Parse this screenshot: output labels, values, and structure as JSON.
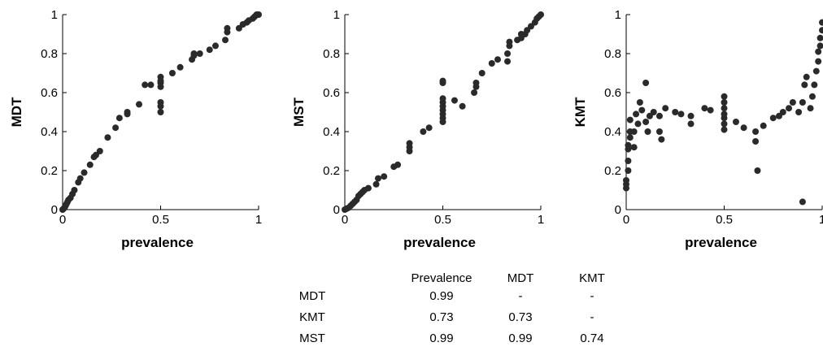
{
  "chart_data": [
    {
      "type": "scatter",
      "xlabel": "prevalence",
      "ylabel": "MDT",
      "xlim": [
        0,
        1
      ],
      "ylim": [
        0,
        1
      ],
      "xticks": [
        "0",
        "0.5",
        "1"
      ],
      "yticks": [
        "0",
        "0.2",
        "0.4",
        "0.6",
        "0.8",
        "1"
      ],
      "grid": false,
      "points": [
        [
          0.0,
          0.0
        ],
        [
          0.005,
          0.005
        ],
        [
          0.01,
          0.01
        ],
        [
          0.015,
          0.02
        ],
        [
          0.02,
          0.03
        ],
        [
          0.025,
          0.04
        ],
        [
          0.03,
          0.05
        ],
        [
          0.04,
          0.06
        ],
        [
          0.05,
          0.08
        ],
        [
          0.06,
          0.1
        ],
        [
          0.08,
          0.14
        ],
        [
          0.09,
          0.16
        ],
        [
          0.11,
          0.19
        ],
        [
          0.14,
          0.23
        ],
        [
          0.16,
          0.27
        ],
        [
          0.17,
          0.28
        ],
        [
          0.19,
          0.3
        ],
        [
          0.23,
          0.37
        ],
        [
          0.27,
          0.42
        ],
        [
          0.29,
          0.47
        ],
        [
          0.33,
          0.5
        ],
        [
          0.33,
          0.49
        ],
        [
          0.39,
          0.54
        ],
        [
          0.42,
          0.64
        ],
        [
          0.45,
          0.64
        ],
        [
          0.5,
          0.5
        ],
        [
          0.5,
          0.53
        ],
        [
          0.5,
          0.55
        ],
        [
          0.5,
          0.63
        ],
        [
          0.5,
          0.65
        ],
        [
          0.5,
          0.66
        ],
        [
          0.5,
          0.68
        ],
        [
          0.56,
          0.7
        ],
        [
          0.6,
          0.73
        ],
        [
          0.66,
          0.77
        ],
        [
          0.67,
          0.79
        ],
        [
          0.67,
          0.8
        ],
        [
          0.7,
          0.8
        ],
        [
          0.75,
          0.82
        ],
        [
          0.78,
          0.84
        ],
        [
          0.83,
          0.87
        ],
        [
          0.84,
          0.91
        ],
        [
          0.84,
          0.93
        ],
        [
          0.9,
          0.93
        ],
        [
          0.92,
          0.95
        ],
        [
          0.94,
          0.96
        ],
        [
          0.95,
          0.97
        ],
        [
          0.97,
          0.98
        ],
        [
          0.98,
          0.99
        ],
        [
          0.99,
          1.0
        ],
        [
          1.0,
          1.0
        ]
      ]
    },
    {
      "type": "scatter",
      "xlabel": "prevalence",
      "ylabel": "MST",
      "xlim": [
        0,
        1
      ],
      "ylim": [
        0,
        1
      ],
      "xticks": [
        "0",
        "0.5",
        "1"
      ],
      "yticks": [
        "0",
        "0.2",
        "0.4",
        "0.6",
        "0.8",
        "1"
      ],
      "grid": false,
      "points": [
        [
          0.0,
          0.0
        ],
        [
          0.01,
          0.005
        ],
        [
          0.02,
          0.01
        ],
        [
          0.03,
          0.02
        ],
        [
          0.04,
          0.03
        ],
        [
          0.05,
          0.04
        ],
        [
          0.06,
          0.05
        ],
        [
          0.07,
          0.07
        ],
        [
          0.08,
          0.08
        ],
        [
          0.09,
          0.09
        ],
        [
          0.1,
          0.1
        ],
        [
          0.12,
          0.11
        ],
        [
          0.16,
          0.13
        ],
        [
          0.17,
          0.16
        ],
        [
          0.2,
          0.17
        ],
        [
          0.25,
          0.22
        ],
        [
          0.27,
          0.23
        ],
        [
          0.33,
          0.3
        ],
        [
          0.33,
          0.32
        ],
        [
          0.33,
          0.34
        ],
        [
          0.4,
          0.4
        ],
        [
          0.43,
          0.42
        ],
        [
          0.5,
          0.45
        ],
        [
          0.5,
          0.47
        ],
        [
          0.5,
          0.49
        ],
        [
          0.5,
          0.51
        ],
        [
          0.5,
          0.53
        ],
        [
          0.5,
          0.55
        ],
        [
          0.5,
          0.57
        ],
        [
          0.5,
          0.65
        ],
        [
          0.5,
          0.66
        ],
        [
          0.56,
          0.56
        ],
        [
          0.6,
          0.53
        ],
        [
          0.66,
          0.6
        ],
        [
          0.67,
          0.63
        ],
        [
          0.67,
          0.65
        ],
        [
          0.7,
          0.7
        ],
        [
          0.75,
          0.75
        ],
        [
          0.78,
          0.77
        ],
        [
          0.83,
          0.76
        ],
        [
          0.83,
          0.8
        ],
        [
          0.84,
          0.84
        ],
        [
          0.84,
          0.86
        ],
        [
          0.88,
          0.87
        ],
        [
          0.9,
          0.88
        ],
        [
          0.9,
          0.9
        ],
        [
          0.92,
          0.9
        ],
        [
          0.93,
          0.92
        ],
        [
          0.95,
          0.94
        ],
        [
          0.97,
          0.96
        ],
        [
          0.98,
          0.98
        ],
        [
          0.99,
          0.99
        ],
        [
          1.0,
          1.0
        ]
      ]
    },
    {
      "type": "scatter",
      "xlabel": "prevalence",
      "ylabel": "KMT",
      "xlim": [
        0,
        1
      ],
      "ylim": [
        0,
        1
      ],
      "xticks": [
        "0",
        "0.5",
        "1"
      ],
      "yticks": [
        "0",
        "0.2",
        "0.4",
        "0.6",
        "0.8",
        "1"
      ],
      "grid": false,
      "points": [
        [
          0.0,
          0.11
        ],
        [
          0.0,
          0.13
        ],
        [
          0.0,
          0.15
        ],
        [
          0.01,
          0.2
        ],
        [
          0.01,
          0.25
        ],
        [
          0.01,
          0.31
        ],
        [
          0.01,
          0.33
        ],
        [
          0.02,
          0.37
        ],
        [
          0.02,
          0.4
        ],
        [
          0.02,
          0.46
        ],
        [
          0.04,
          0.32
        ],
        [
          0.04,
          0.4
        ],
        [
          0.05,
          0.49
        ],
        [
          0.06,
          0.44
        ],
        [
          0.07,
          0.55
        ],
        [
          0.08,
          0.51
        ],
        [
          0.1,
          0.65
        ],
        [
          0.1,
          0.45
        ],
        [
          0.11,
          0.4
        ],
        [
          0.12,
          0.48
        ],
        [
          0.14,
          0.5
        ],
        [
          0.17,
          0.48
        ],
        [
          0.17,
          0.4
        ],
        [
          0.18,
          0.36
        ],
        [
          0.2,
          0.52
        ],
        [
          0.25,
          0.5
        ],
        [
          0.28,
          0.49
        ],
        [
          0.33,
          0.48
        ],
        [
          0.33,
          0.44
        ],
        [
          0.4,
          0.52
        ],
        [
          0.43,
          0.51
        ],
        [
          0.5,
          0.41
        ],
        [
          0.5,
          0.44
        ],
        [
          0.5,
          0.47
        ],
        [
          0.5,
          0.49
        ],
        [
          0.5,
          0.52
        ],
        [
          0.5,
          0.55
        ],
        [
          0.5,
          0.58
        ],
        [
          0.56,
          0.45
        ],
        [
          0.6,
          0.42
        ],
        [
          0.66,
          0.4
        ],
        [
          0.66,
          0.35
        ],
        [
          0.67,
          0.2
        ],
        [
          0.7,
          0.43
        ],
        [
          0.75,
          0.47
        ],
        [
          0.78,
          0.48
        ],
        [
          0.8,
          0.5
        ],
        [
          0.83,
          0.52
        ],
        [
          0.85,
          0.55
        ],
        [
          0.88,
          0.5
        ],
        [
          0.9,
          0.04
        ],
        [
          0.9,
          0.55
        ],
        [
          0.91,
          0.64
        ],
        [
          0.92,
          0.68
        ],
        [
          0.94,
          0.52
        ],
        [
          0.95,
          0.58
        ],
        [
          0.96,
          0.64
        ],
        [
          0.97,
          0.71
        ],
        [
          0.98,
          0.76
        ],
        [
          0.98,
          0.81
        ],
        [
          0.99,
          0.84
        ],
        [
          0.99,
          0.88
        ],
        [
          1.0,
          0.92
        ],
        [
          1.0,
          0.96
        ]
      ]
    }
  ],
  "correlation_table": {
    "columns": [
      "Prevalence",
      "MDT",
      "KMT"
    ],
    "rows": [
      {
        "label": "MDT",
        "values": [
          "0.99",
          "-",
          "-"
        ]
      },
      {
        "label": "KMT",
        "values": [
          "0.73",
          "0.73",
          "-"
        ]
      },
      {
        "label": "MST",
        "values": [
          "0.99",
          "0.99",
          "0.74"
        ]
      }
    ]
  },
  "colors": {
    "marker": "#2a2a2a",
    "axis": "#000000"
  }
}
